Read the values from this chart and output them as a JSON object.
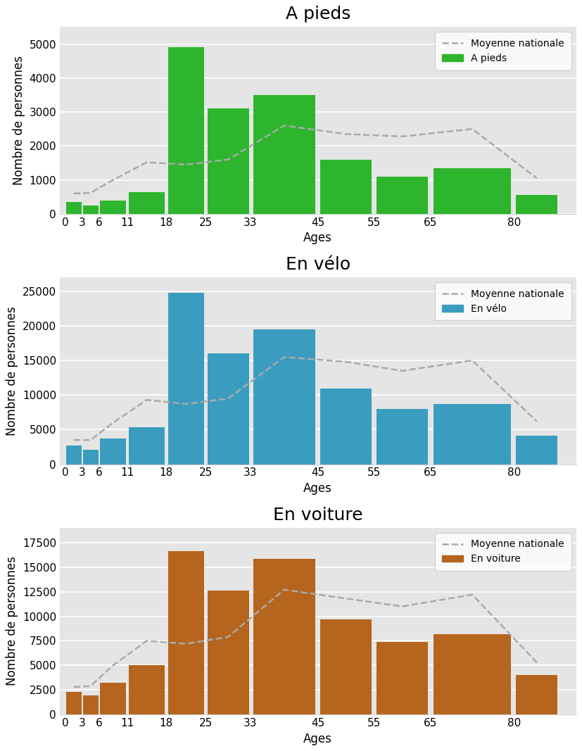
{
  "charts": [
    {
      "title": "A pieds",
      "bar_color": "#2db52d",
      "legend_label": "A pieds",
      "bar_values": [
        350,
        250,
        400,
        650,
        4900,
        3100,
        3500,
        1600,
        1100,
        1350,
        550
      ],
      "avg_values": [
        600,
        620,
        1000,
        1520,
        1450,
        1600,
        2600,
        2350,
        2280,
        2500,
        1050
      ],
      "ylim": [
        0,
        5500
      ],
      "yticks": [
        0,
        1000,
        2000,
        3000,
        4000,
        5000
      ]
    },
    {
      "title": "En vélo",
      "bar_color": "#3a9dbf",
      "legend_label": "En vélo",
      "bar_values": [
        2700,
        2100,
        3700,
        5300,
        24800,
        16000,
        19500,
        10900,
        8000,
        8700,
        4100
      ],
      "avg_values": [
        3500,
        3500,
        6000,
        9300,
        8700,
        9500,
        15500,
        14800,
        13500,
        15000,
        6200
      ],
      "ylim": [
        0,
        27000
      ],
      "yticks": [
        0,
        5000,
        10000,
        15000,
        20000,
        25000
      ]
    },
    {
      "title": "En voiture",
      "bar_color": "#b5651d",
      "legend_label": "En voiture",
      "bar_values": [
        2300,
        1950,
        3250,
        5000,
        16600,
        12600,
        15800,
        9700,
        7400,
        8200,
        4000
      ],
      "avg_values": [
        2800,
        2900,
        5000,
        7500,
        7200,
        7900,
        12700,
        11800,
        11000,
        12200,
        5300
      ],
      "ylim": [
        0,
        19000
      ],
      "yticks": [
        0,
        2500,
        5000,
        7500,
        10000,
        12500,
        15000,
        17500
      ]
    }
  ],
  "age_group_edges": [
    0,
    3,
    6,
    11,
    18,
    25,
    33,
    45,
    55,
    65,
    80,
    88
  ],
  "x_tick_positions": [
    0,
    3,
    6,
    11,
    18,
    25,
    33,
    45,
    55,
    65,
    80
  ],
  "x_tick_labels": [
    "0",
    "3",
    "6",
    "11",
    "18",
    "25",
    "33",
    "45",
    "55",
    "65",
    "80"
  ],
  "xlim": [
    -1,
    91
  ],
  "xlabel": "Ages",
  "ylabel": "Nombre de personnes",
  "bg_color": "#e5e5e5",
  "grid_color": "white",
  "avg_line_color": "#aaaaaa",
  "avg_line_style": "--",
  "title_fontsize": 18,
  "label_fontsize": 12,
  "tick_fontsize": 11
}
